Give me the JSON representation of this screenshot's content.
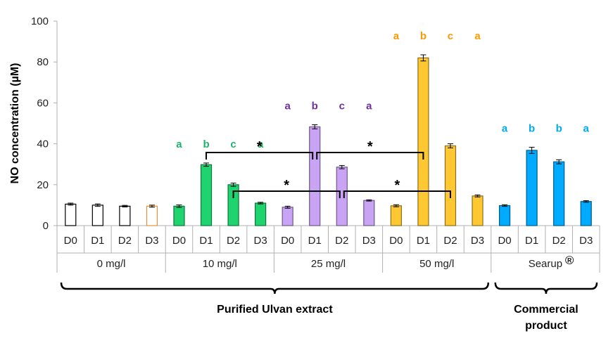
{
  "chart_data": {
    "type": "bar",
    "ylabel": "NO  concentration (µM)",
    "ylim": [
      0,
      100
    ],
    "yticks": [
      0,
      20,
      40,
      60,
      80,
      100
    ],
    "grid": false,
    "groups": [
      {
        "label": "0 mg/l",
        "color": "#ffffff",
        "edge_color": "#000000",
        "categories": [
          "D0",
          "D1",
          "D2",
          "D3"
        ],
        "values": [
          10.5,
          10.0,
          9.5,
          9.5
        ],
        "errors": [
          0.5,
          0.6,
          0.4,
          0.5
        ],
        "letters": []
      },
      {
        "label": "10 mg/l",
        "color": "#1fd36e",
        "categories": [
          "D0",
          "D1",
          "D2",
          "D3"
        ],
        "values": [
          9.5,
          29.8,
          20.0,
          11.0
        ],
        "errors": [
          0.6,
          0.8,
          0.8,
          0.4
        ],
        "letters": [
          "a",
          "b",
          "c",
          "a"
        ],
        "letter_color": "#1fb36b"
      },
      {
        "label": "25 mg/l",
        "color": "#c9a4f5",
        "categories": [
          "D0",
          "D1",
          "D2",
          "D3"
        ],
        "values": [
          9.0,
          48.3,
          28.6,
          12.3
        ],
        "errors": [
          0.5,
          1.0,
          0.8,
          0.3
        ],
        "letters": [
          "a",
          "b",
          "c",
          "a"
        ],
        "letter_color": "#7030a0"
      },
      {
        "label": "50 mg/l",
        "color": "#ffc832",
        "categories": [
          "D0",
          "D1",
          "D2",
          "D3"
        ],
        "values": [
          9.7,
          82.0,
          39.0,
          14.5
        ],
        "errors": [
          0.5,
          1.5,
          1.0,
          0.5
        ],
        "letters": [
          "a",
          "b",
          "c",
          "a"
        ],
        "letter_color": "#ff9900"
      },
      {
        "label": "Searup",
        "label_suffix": "®",
        "color": "#00aaff",
        "categories": [
          "D0",
          "D1",
          "D2",
          "D3"
        ],
        "values": [
          9.8,
          36.8,
          31.2,
          11.8
        ],
        "errors": [
          0.4,
          1.5,
          1.0,
          0.4
        ],
        "letters": [
          "a",
          "b",
          "b",
          "a"
        ],
        "letter_color": "#00aaee"
      }
    ],
    "significance_brackets": [
      {
        "from": [
          1,
          1
        ],
        "to": [
          2,
          1
        ],
        "label": "*"
      },
      {
        "from": [
          2,
          1
        ],
        "to": [
          3,
          1
        ],
        "label": "*"
      },
      {
        "from": [
          1,
          2
        ],
        "to": [
          2,
          2
        ],
        "label": "*"
      },
      {
        "from": [
          2,
          2
        ],
        "to": [
          3,
          2
        ],
        "label": "*"
      }
    ],
    "super_groups": [
      {
        "label": "Purified Ulvan extract",
        "group_span": [
          0,
          3
        ]
      },
      {
        "label_lines": [
          "Commercial",
          "product"
        ],
        "group_span": [
          4,
          4
        ]
      }
    ]
  }
}
